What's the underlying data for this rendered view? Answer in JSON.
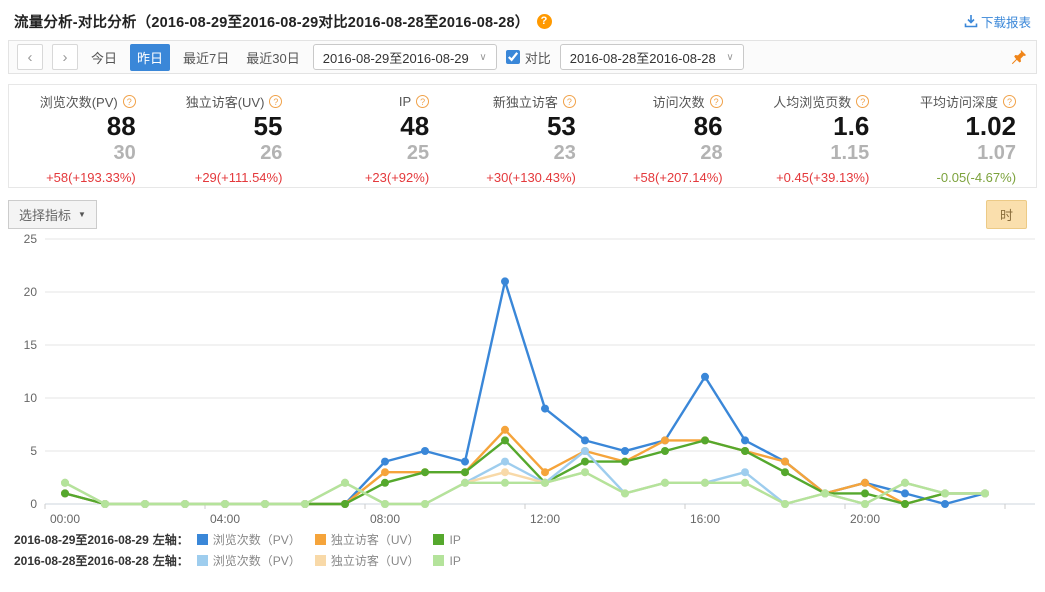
{
  "header": {
    "title": "流量分析-对比分析（2016-08-29至2016-08-29对比2016-08-28至2016-08-28）",
    "help_glyph": "?",
    "download_label": "下载报表"
  },
  "icons": {
    "prev_arrow": "‹",
    "next_arrow": "›",
    "chevron_down": "∨",
    "caret_down": "▼"
  },
  "date_nav": {
    "today_label": "今日",
    "yesterday_label": "昨日",
    "last7_label": "最近7日",
    "last30_label": "最近30日",
    "range_primary": "2016-08-29至2016-08-29",
    "compare_label": "对比",
    "compare_checked": "checked",
    "range_compare": "2016-08-28至2016-08-28"
  },
  "metrics": [
    {
      "label": "浏览次数(PV)",
      "help": "?",
      "value": "88",
      "prev": "30",
      "change": "+58(+193.33%)",
      "trend": "up"
    },
    {
      "label": "独立访客(UV)",
      "help": "?",
      "value": "55",
      "prev": "26",
      "change": "+29(+111.54%)",
      "trend": "up"
    },
    {
      "label": "IP",
      "help": "?",
      "value": "48",
      "prev": "25",
      "change": "+23(+92%)",
      "trend": "up"
    },
    {
      "label": "新独立访客",
      "help": "?",
      "value": "53",
      "prev": "23",
      "change": "+30(+130.43%)",
      "trend": "up"
    },
    {
      "label": "访问次数",
      "help": "?",
      "value": "86",
      "prev": "28",
      "change": "+58(+207.14%)",
      "trend": "up"
    },
    {
      "label": "人均浏览页数",
      "help": "?",
      "value": "1.6",
      "prev": "1.15",
      "change": "+0.45(+39.13%)",
      "trend": "up"
    },
    {
      "label": "平均访问深度",
      "help": "?",
      "value": "1.02",
      "prev": "1.07",
      "change": "-0.05(-4.67%)",
      "trend": "down"
    }
  ],
  "toolbar": {
    "select_metric_label": "选择指标",
    "granularity_label": "时"
  },
  "chart_data": {
    "type": "line",
    "x": [
      "00:00",
      "01:00",
      "02:00",
      "03:00",
      "04:00",
      "05:00",
      "06:00",
      "07:00",
      "08:00",
      "09:00",
      "10:00",
      "11:00",
      "12:00",
      "13:00",
      "14:00",
      "15:00",
      "16:00",
      "17:00",
      "18:00",
      "19:00",
      "20:00",
      "21:00",
      "22:00",
      "23:00"
    ],
    "x_tick_labels": [
      "00:00",
      "04:00",
      "08:00",
      "12:00",
      "16:00",
      "20:00"
    ],
    "ylim": [
      0,
      25
    ],
    "y_ticks": [
      0,
      5,
      10,
      15,
      20,
      25
    ],
    "grid": "horizontal",
    "legend_position": "bottom",
    "series": [
      {
        "name": "2016-08-29 浏览次数（PV）",
        "color": "#3a87d8",
        "values": [
          1,
          0,
          0,
          0,
          0,
          0,
          0,
          0,
          4,
          5,
          4,
          21,
          9,
          6,
          5,
          6,
          12,
          6,
          4,
          1,
          2,
          1,
          0,
          1
        ]
      },
      {
        "name": "2016-08-29 独立访客（UV）",
        "color": "#f5a43b",
        "values": [
          1,
          0,
          0,
          0,
          0,
          0,
          0,
          0,
          3,
          3,
          3,
          7,
          3,
          5,
          4,
          6,
          6,
          5,
          4,
          1,
          2,
          0,
          1,
          1
        ]
      },
      {
        "name": "2016-08-29 IP",
        "color": "#55a82d",
        "values": [
          1,
          0,
          0,
          0,
          0,
          0,
          0,
          0,
          2,
          3,
          3,
          6,
          2,
          4,
          4,
          5,
          6,
          5,
          3,
          1,
          1,
          0,
          1,
          1
        ]
      },
      {
        "name": "2016-08-28 浏览次数（PV）",
        "color": "#9ecdee",
        "values": [
          2,
          0,
          0,
          0,
          0,
          0,
          0,
          2,
          0,
          0,
          2,
          4,
          2,
          5,
          1,
          2,
          2,
          3,
          0,
          1,
          0,
          2,
          1,
          1
        ]
      },
      {
        "name": "2016-08-28 独立访客（UV）",
        "color": "#f8d9a8",
        "values": [
          2,
          0,
          0,
          0,
          0,
          0,
          0,
          2,
          0,
          0,
          2,
          3,
          2,
          3,
          1,
          2,
          2,
          2,
          0,
          1,
          0,
          2,
          1,
          1
        ]
      },
      {
        "name": "2016-08-28 IP",
        "color": "#b4e39b",
        "values": [
          2,
          0,
          0,
          0,
          0,
          0,
          0,
          2,
          0,
          0,
          2,
          2,
          2,
          3,
          1,
          2,
          2,
          2,
          0,
          1,
          0,
          2,
          1,
          1
        ]
      }
    ]
  },
  "legend": [
    {
      "date": "2016-08-29至2016-08-29",
      "axis_label": "左轴：",
      "items": [
        {
          "label": "浏览次数（PV）"
        },
        {
          "label": "独立访客（UV）"
        },
        {
          "label": "IP"
        }
      ]
    },
    {
      "date": "2016-08-28至2016-08-28",
      "axis_label": "左轴：",
      "items": [
        {
          "label": "浏览次数（PV）"
        },
        {
          "label": "独立访客（UV）"
        },
        {
          "label": "IP"
        }
      ]
    }
  ]
}
